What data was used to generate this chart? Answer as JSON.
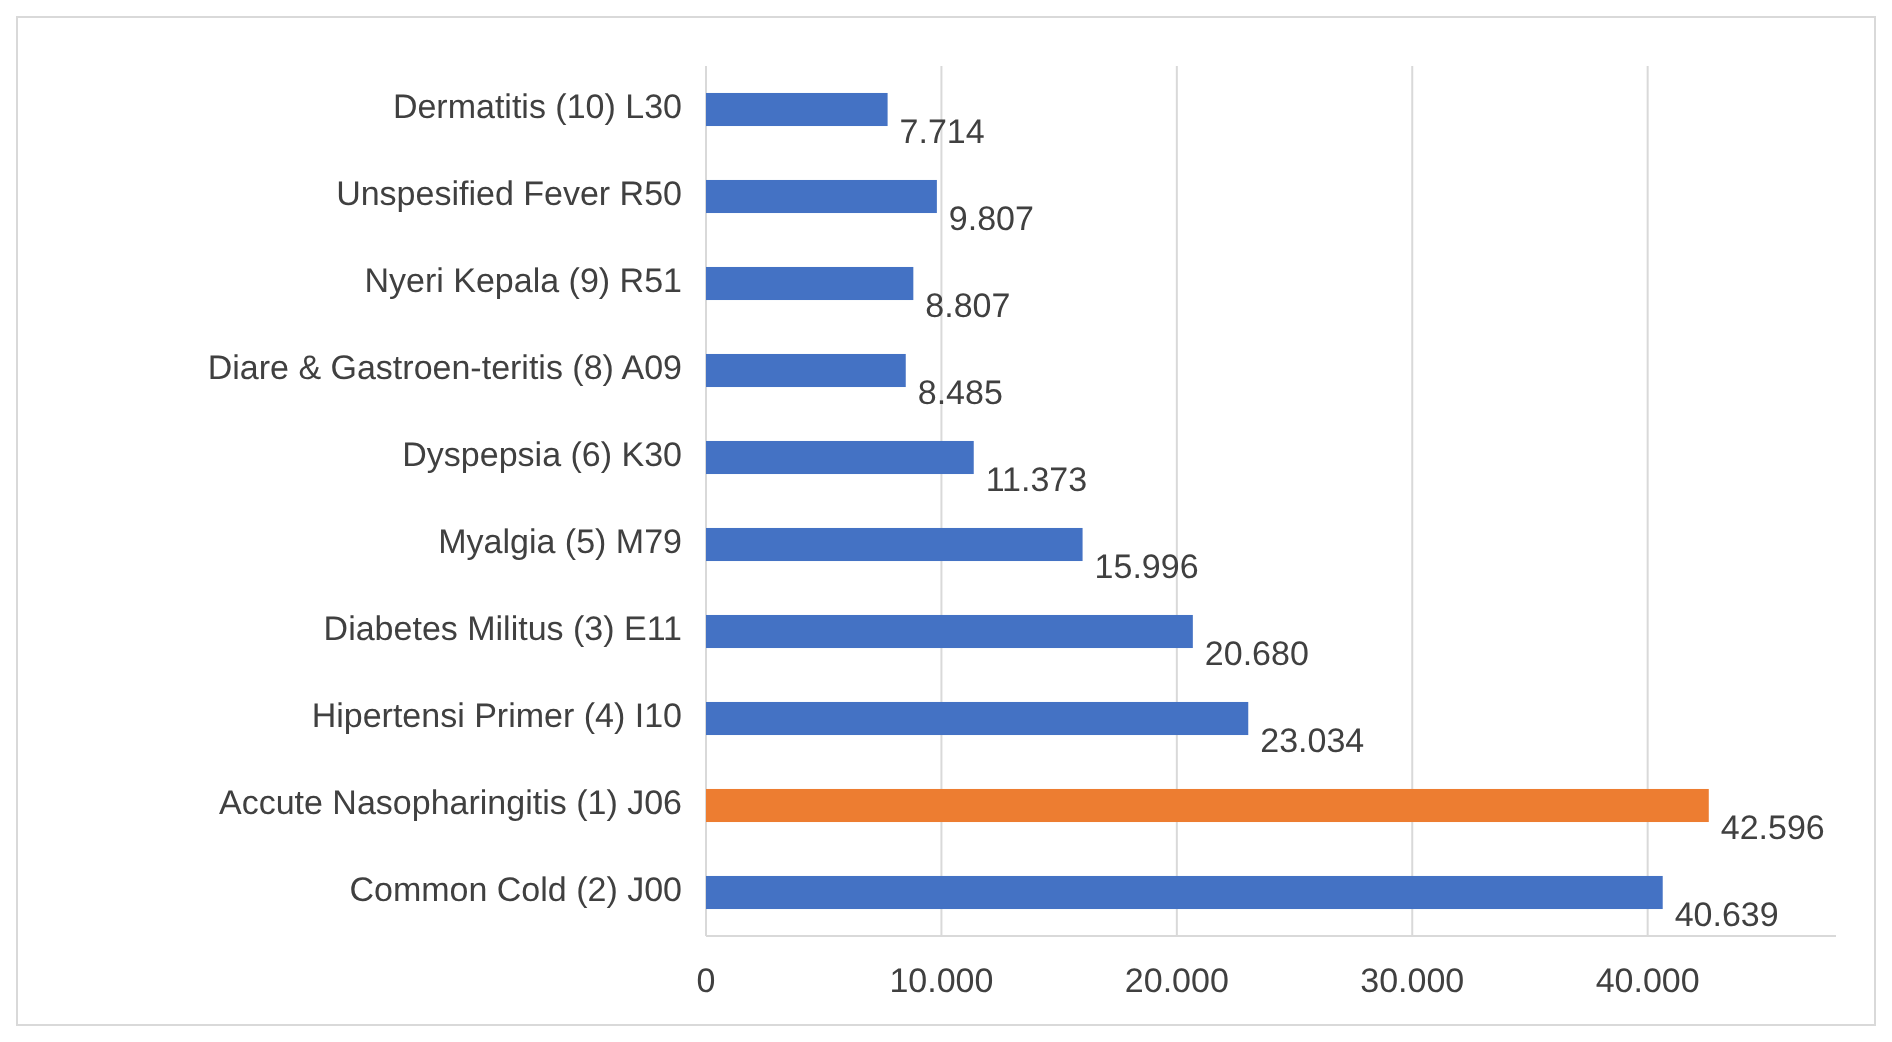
{
  "chart_data": {
    "type": "bar",
    "orientation": "horizontal",
    "categories": [
      "Dermatitis (10) L30",
      "Unspesified Fever R50",
      "Nyeri Kepala (9) R51",
      "Diare & Gastroen-teritis (8) A09",
      "Dyspepsia (6) K30",
      "Myalgia (5) M79",
      "Diabetes Militus (3) E11",
      "Hipertensi Primer (4) I10",
      "Accute Nasopharingitis (1) J06",
      "Common Cold (2) J00"
    ],
    "values": [
      7714,
      9807,
      8807,
      8485,
      11373,
      15996,
      20680,
      23034,
      42596,
      40639
    ],
    "value_labels": [
      "7.714",
      "9.807",
      "8.807",
      "8.485",
      "11.373",
      "15.996",
      "20.680",
      "23.034",
      "42.596",
      "40.639"
    ],
    "colors": [
      "#4472c4",
      "#4472c4",
      "#4472c4",
      "#4472c4",
      "#4472c4",
      "#4472c4",
      "#4472c4",
      "#4472c4",
      "#ed7d31",
      "#4472c4"
    ],
    "xlim": [
      0,
      48000
    ],
    "xticks": [
      0,
      {
        "value": 10000,
        "label": "10.000"
      },
      {
        "value": 20000,
        "label": "20.000"
      },
      {
        "value": 30000,
        "label": "30.000"
      },
      {
        "value": 40000,
        "label": "40.000"
      }
    ],
    "grid": "x"
  }
}
